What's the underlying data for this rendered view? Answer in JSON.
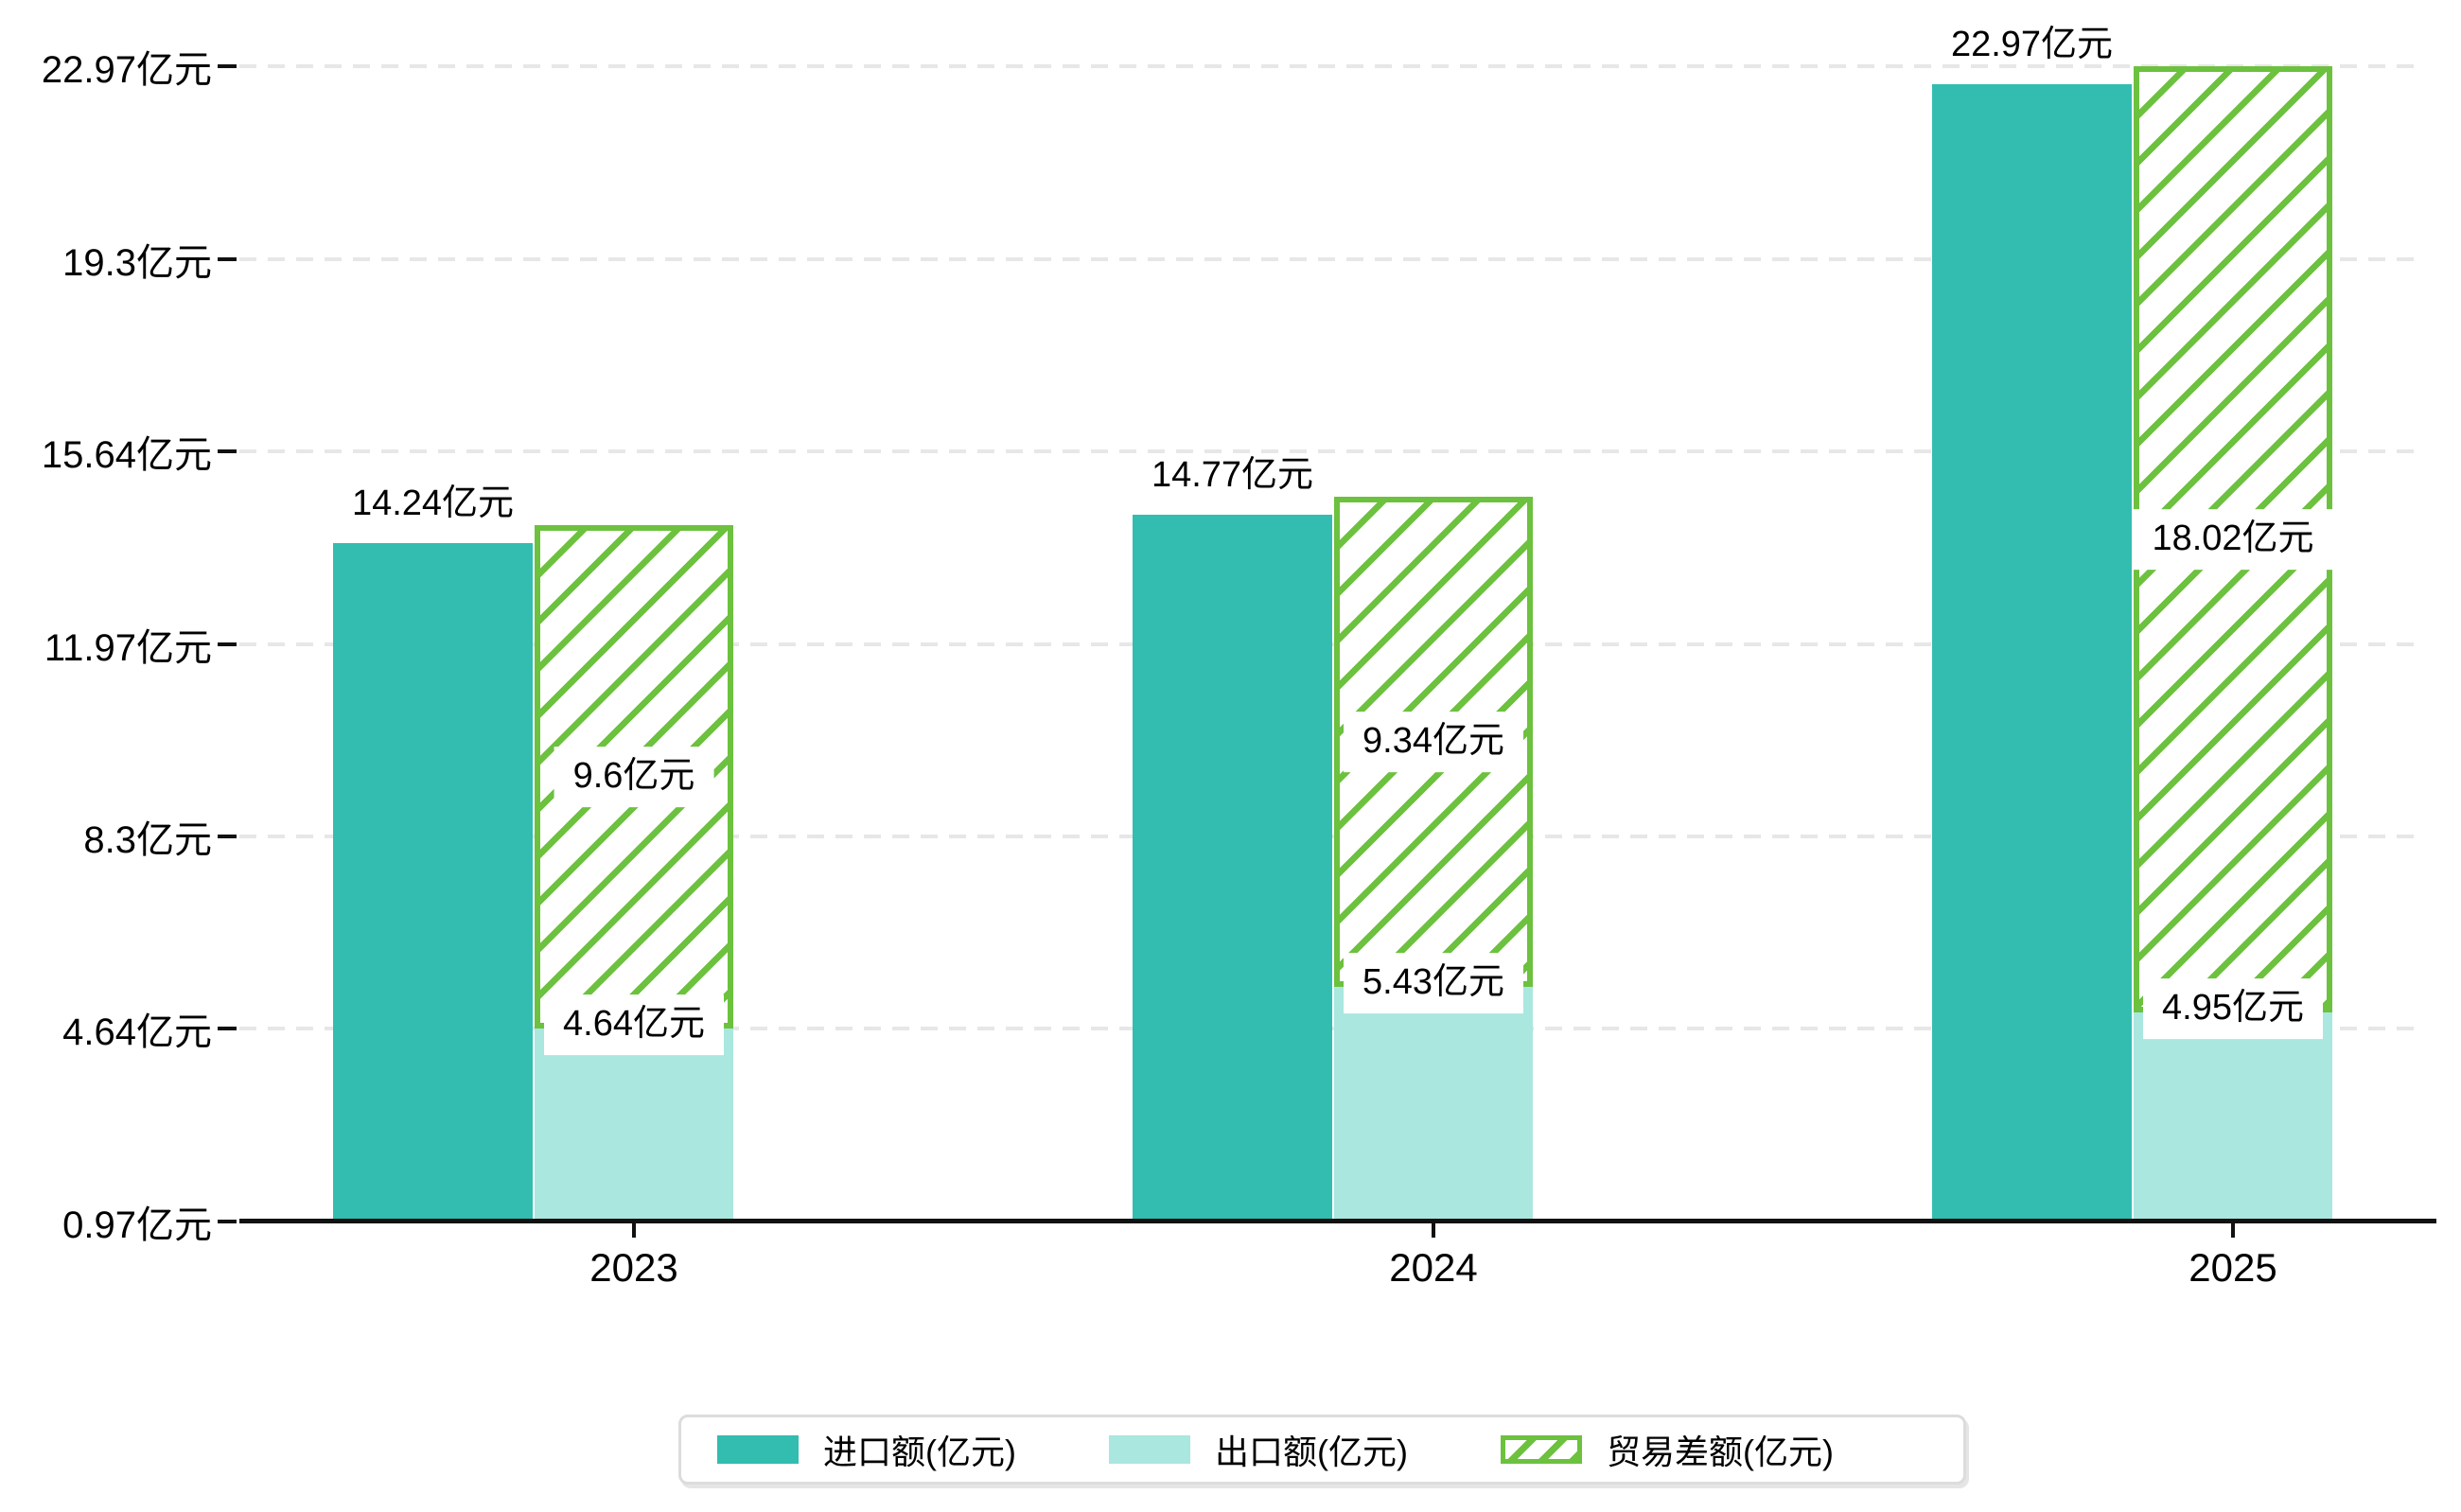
{
  "chart_data": {
    "type": "bar",
    "title": "",
    "unit": "亿元",
    "categories": [
      "2023",
      "2024",
      "2025"
    ],
    "series": [
      {
        "name": "进口额(亿元)",
        "role": "import",
        "style": "solid",
        "color": "#32bdb0",
        "values": [
          14.24,
          14.77,
          22.97
        ],
        "labels": [
          "14.24亿元",
          "14.77亿元",
          "22.97亿元"
        ]
      },
      {
        "name": "出口额(亿元)",
        "role": "export",
        "style": "solid",
        "color": "#a9e7df",
        "values": [
          4.64,
          5.43,
          4.95
        ],
        "labels": [
          "4.64亿元",
          "5.43亿元",
          "4.95亿元"
        ]
      },
      {
        "name": "贸易差额(亿元)",
        "role": "difference",
        "style": "hatched",
        "color": "#6cc13e",
        "values": [
          9.6,
          9.34,
          18.02
        ],
        "labels": [
          "9.6亿元",
          "9.34亿元",
          "18.02亿元"
        ]
      }
    ],
    "stacking": "export and difference are stacked in one column beside the import column; export + difference = import",
    "y_axis": {
      "ylim": [
        0.97,
        22.97
      ],
      "ticks": [
        {
          "value": 0.97,
          "label": "0.97亿元"
        },
        {
          "value": 4.64,
          "label": "4.64亿元"
        },
        {
          "value": 8.3,
          "label": "8.3亿元"
        },
        {
          "value": 11.97,
          "label": "11.97亿元"
        },
        {
          "value": 15.64,
          "label": "15.64亿元"
        },
        {
          "value": 19.3,
          "label": "19.3亿元"
        },
        {
          "value": 22.97,
          "label": "22.97亿元"
        }
      ]
    },
    "x_axis": {
      "ticks": [
        "2023",
        "2024",
        "2025"
      ]
    },
    "grid": {
      "horizontal": true,
      "style": "dashed",
      "color": "#e7e7e7"
    },
    "legend_position": "bottom"
  },
  "colors": {
    "import": "#32bdb0",
    "export": "#a9e7df",
    "difference": "#6cc13e",
    "axis": "#111111",
    "text": "#000000",
    "grid": "#e7e7e7",
    "legend_border": "#dcdcdc",
    "background": "#ffffff"
  }
}
